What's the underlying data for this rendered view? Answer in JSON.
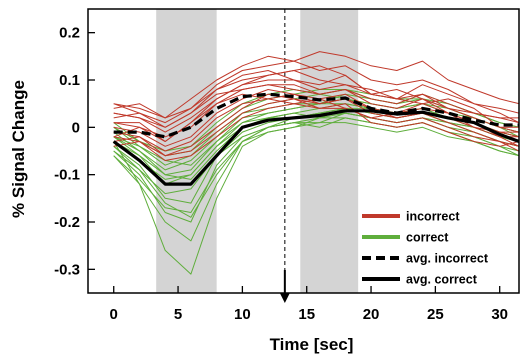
{
  "chart_data": {
    "type": "line",
    "title": "",
    "xlabel": "Time [sec]",
    "ylabel": "% Signal Change",
    "xlim": [
      -2,
      31.5
    ],
    "ylim": [
      -0.35,
      0.25
    ],
    "x_ticks": [
      0,
      5,
      10,
      15,
      20,
      25,
      30
    ],
    "x_tick_labels": [
      "0",
      "5",
      "10",
      "15",
      "20",
      "25",
      "30"
    ],
    "y_ticks": [
      0.2,
      0.1,
      0,
      -0.1,
      -0.2,
      -0.3
    ],
    "y_tick_labels": [
      "0.2",
      "0.1",
      "0",
      "-0.1",
      "-0.2",
      "-0.3"
    ],
    "grid": false,
    "legend_position": "bottom-right",
    "shaded_intervals": [
      [
        3.3,
        8
      ],
      [
        14.5,
        19
      ]
    ],
    "shade_color": "#d4d4d4",
    "event_marker": {
      "x": 13.3,
      "style": "dashed vertical line with downward arrow"
    },
    "colors": {
      "incorrect": "#c0392b",
      "correct": "#5fae3c",
      "average": "#000000"
    },
    "x": [
      0,
      2,
      4,
      6,
      8,
      10,
      12,
      14,
      16,
      18,
      20,
      22,
      24,
      26,
      28,
      30,
      31.5
    ],
    "series": [
      {
        "name": "avg. incorrect",
        "style": "dashed",
        "values": [
          -0.01,
          -0.01,
          -0.02,
          0.0,
          0.04,
          0.065,
          0.07,
          0.065,
          0.058,
          0.062,
          0.04,
          0.03,
          0.04,
          0.03,
          0.015,
          0.005,
          0.005
        ]
      },
      {
        "name": "avg. correct",
        "style": "solid",
        "values": [
          -0.03,
          -0.07,
          -0.12,
          -0.12,
          -0.06,
          0.0,
          0.015,
          0.02,
          0.025,
          0.035,
          0.035,
          0.028,
          0.032,
          0.02,
          0.01,
          -0.015,
          -0.03
        ]
      }
    ],
    "subject_curves": {
      "incorrect": [
        [
          0.05,
          0.04,
          0.02,
          0.04,
          0.08,
          0.1,
          0.11,
          0.12,
          0.1,
          0.09,
          0.08,
          0.06,
          0.07,
          0.04,
          0.03,
          0.02,
          0.02
        ],
        [
          -0.02,
          0.0,
          -0.03,
          0.01,
          0.06,
          0.09,
          0.1,
          0.1,
          0.09,
          0.11,
          0.07,
          0.06,
          0.05,
          0.06,
          0.04,
          0.0,
          0.0
        ],
        [
          0.03,
          0.02,
          0.0,
          0.03,
          0.07,
          0.08,
          0.09,
          0.08,
          0.07,
          0.08,
          0.06,
          0.05,
          0.07,
          0.05,
          0.03,
          0.02,
          0.01
        ],
        [
          0.0,
          -0.01,
          -0.04,
          -0.02,
          0.03,
          0.06,
          0.08,
          0.07,
          0.06,
          0.07,
          0.04,
          0.03,
          0.04,
          0.03,
          0.0,
          -0.01,
          -0.01
        ],
        [
          -0.03,
          -0.02,
          -0.05,
          -0.03,
          0.02,
          0.05,
          0.06,
          0.07,
          0.05,
          0.06,
          0.03,
          0.02,
          0.03,
          0.02,
          0.0,
          -0.02,
          -0.02
        ],
        [
          0.02,
          0.03,
          0.01,
          0.04,
          0.09,
          0.12,
          0.13,
          0.14,
          0.12,
          0.13,
          0.1,
          0.09,
          0.1,
          0.08,
          0.05,
          0.04,
          0.03
        ],
        [
          0.04,
          0.05,
          0.02,
          0.06,
          0.1,
          0.13,
          0.15,
          0.14,
          0.16,
          0.15,
          0.13,
          0.12,
          0.14,
          0.1,
          0.08,
          0.06,
          0.05
        ],
        [
          -0.01,
          -0.02,
          -0.06,
          -0.05,
          -0.01,
          0.03,
          0.05,
          0.06,
          0.04,
          0.05,
          0.01,
          0.0,
          0.01,
          -0.01,
          -0.03,
          -0.04,
          -0.03
        ],
        [
          0.01,
          0.0,
          -0.02,
          0.0,
          0.05,
          0.07,
          0.06,
          0.05,
          0.04,
          0.04,
          0.02,
          0.01,
          0.02,
          0.0,
          -0.02,
          -0.03,
          -0.04
        ],
        [
          0.03,
          0.02,
          -0.01,
          0.02,
          0.06,
          0.09,
          0.11,
          0.12,
          0.13,
          0.11,
          0.07,
          0.08,
          0.06,
          0.04,
          0.02,
          0.0,
          -0.01
        ],
        [
          -0.02,
          -0.03,
          -0.07,
          -0.06,
          -0.02,
          0.02,
          0.04,
          0.05,
          0.06,
          0.04,
          0.02,
          0.03,
          0.05,
          0.03,
          0.01,
          -0.02,
          -0.04
        ],
        [
          0.05,
          0.03,
          0.0,
          0.03,
          0.08,
          0.11,
          0.12,
          0.1,
          0.08,
          0.09,
          0.07,
          0.06,
          0.09,
          0.07,
          0.05,
          0.03,
          0.01
        ],
        [
          0.01,
          0.01,
          -0.03,
          0.01,
          0.05,
          0.08,
          0.09,
          0.09,
          0.07,
          0.08,
          0.05,
          0.04,
          0.06,
          0.03,
          0.01,
          -0.01,
          -0.02
        ],
        [
          -0.04,
          -0.03,
          -0.06,
          -0.04,
          0.0,
          0.04,
          0.07,
          0.06,
          0.05,
          0.06,
          0.04,
          0.02,
          0.03,
          0.01,
          -0.01,
          -0.03,
          -0.05
        ]
      ],
      "correct": [
        [
          -0.02,
          -0.06,
          -0.12,
          -0.1,
          -0.04,
          0.0,
          0.02,
          0.03,
          0.02,
          0.04,
          0.03,
          0.02,
          0.03,
          0.01,
          0.0,
          -0.02,
          -0.03
        ],
        [
          -0.05,
          -0.1,
          -0.18,
          -0.2,
          -0.08,
          -0.02,
          0.0,
          0.01,
          0.02,
          0.03,
          0.02,
          0.01,
          0.02,
          0.0,
          -0.01,
          -0.03,
          -0.04
        ],
        [
          -0.03,
          -0.12,
          -0.26,
          -0.31,
          -0.15,
          -0.04,
          -0.01,
          0.0,
          0.02,
          0.02,
          0.01,
          0.0,
          0.01,
          -0.01,
          -0.02,
          -0.04,
          -0.05
        ],
        [
          0.0,
          -0.04,
          -0.08,
          -0.06,
          -0.01,
          0.03,
          0.04,
          0.05,
          0.05,
          0.06,
          0.05,
          0.04,
          0.05,
          0.03,
          0.02,
          0.0,
          -0.01
        ],
        [
          -0.04,
          -0.08,
          -0.15,
          -0.16,
          -0.06,
          -0.01,
          0.01,
          0.02,
          0.03,
          0.04,
          0.04,
          0.03,
          0.03,
          0.02,
          0.0,
          -0.02,
          -0.03
        ],
        [
          -0.06,
          -0.12,
          -0.2,
          -0.24,
          -0.12,
          -0.03,
          0.0,
          0.01,
          0.01,
          0.03,
          0.02,
          0.01,
          0.02,
          0.0,
          -0.02,
          -0.04,
          -0.06
        ],
        [
          0.01,
          -0.03,
          -0.06,
          -0.05,
          0.0,
          0.04,
          0.06,
          0.07,
          0.08,
          0.08,
          0.06,
          0.05,
          0.07,
          0.05,
          0.03,
          0.01,
          0.0
        ],
        [
          -0.02,
          -0.05,
          -0.1,
          -0.09,
          -0.03,
          0.02,
          0.03,
          0.04,
          0.05,
          0.05,
          0.04,
          0.03,
          0.04,
          0.02,
          0.01,
          -0.01,
          -0.02
        ],
        [
          -0.05,
          -0.09,
          -0.14,
          -0.13,
          -0.06,
          -0.02,
          0.0,
          0.01,
          0.0,
          0.02,
          0.01,
          0.0,
          0.01,
          -0.01,
          -0.03,
          -0.05,
          -0.06
        ],
        [
          -0.03,
          -0.07,
          -0.11,
          -0.1,
          -0.04,
          0.01,
          0.03,
          0.04,
          0.05,
          0.07,
          0.06,
          0.05,
          0.06,
          0.04,
          0.02,
          0.0,
          -0.01
        ],
        [
          -0.01,
          -0.05,
          -0.09,
          -0.07,
          -0.02,
          0.03,
          0.05,
          0.06,
          0.07,
          0.06,
          0.05,
          0.04,
          0.05,
          0.04,
          0.02,
          0.0,
          -0.02
        ],
        [
          -0.06,
          -0.11,
          -0.17,
          -0.18,
          -0.09,
          -0.03,
          -0.01,
          0.0,
          0.01,
          0.01,
          0.0,
          -0.01,
          0.0,
          -0.02,
          -0.03,
          -0.05,
          -0.06
        ],
        [
          -0.02,
          -0.04,
          -0.07,
          -0.08,
          -0.03,
          0.01,
          0.02,
          0.03,
          0.04,
          0.05,
          0.04,
          0.03,
          0.04,
          0.02,
          0.01,
          -0.01,
          -0.02
        ],
        [
          -0.04,
          -0.09,
          -0.16,
          -0.19,
          -0.1,
          -0.03,
          0.0,
          0.02,
          0.03,
          0.03,
          0.02,
          0.01,
          0.02,
          0.01,
          -0.01,
          -0.03,
          -0.04
        ],
        [
          0.0,
          -0.03,
          -0.05,
          -0.04,
          0.01,
          0.05,
          0.07,
          0.08,
          0.07,
          0.08,
          0.07,
          0.06,
          0.06,
          0.05,
          0.03,
          0.01,
          0.0
        ],
        [
          -0.03,
          -0.06,
          -0.1,
          -0.11,
          -0.05,
          0.0,
          0.02,
          0.02,
          0.03,
          0.04,
          0.03,
          0.02,
          0.03,
          0.01,
          0.0,
          -0.02,
          -0.03
        ]
      ]
    },
    "legend": [
      {
        "label": "incorrect",
        "series": "incorrect",
        "style": "solid-thick"
      },
      {
        "label": "correct",
        "series": "correct",
        "style": "solid-thick"
      },
      {
        "label": "avg. incorrect",
        "series": "average",
        "style": "dashed-thick"
      },
      {
        "label": "avg. correct",
        "series": "average",
        "style": "solid-thick"
      }
    ]
  }
}
